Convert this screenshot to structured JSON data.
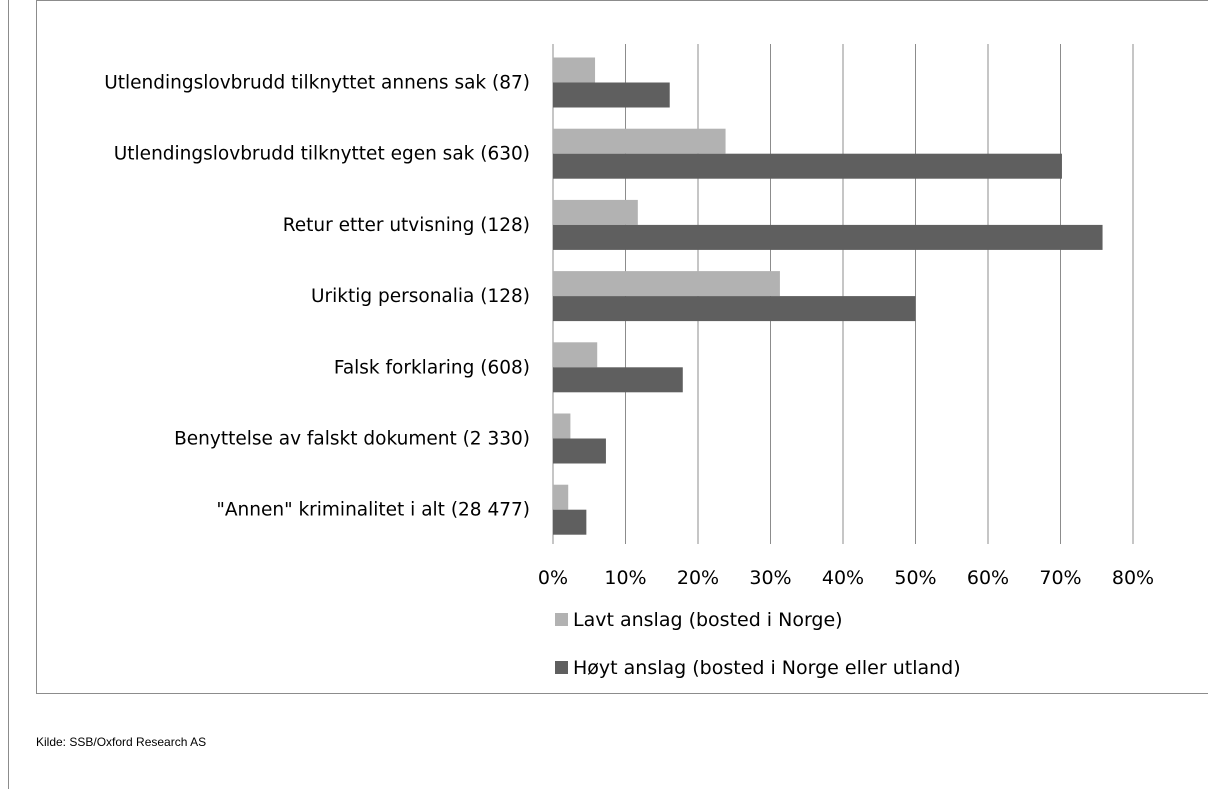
{
  "chart_data": {
    "type": "bar",
    "orientation": "horizontal",
    "categories": [
      "Utlendingslovbrudd tilknyttet annens sak (87)",
      "Utlendingslovbrudd tilknyttet egen sak (630)",
      "Retur etter utvisning (128)",
      "Uriktig personalia (128)",
      "Falsk forklaring (608)",
      "Benyttelse av falskt dokument (2 330)",
      "\"Annen\" kriminalitet i alt (28 477)"
    ],
    "series": [
      {
        "name": "Lavt anslag (bosted i Norge)",
        "color": "#b2b2b2",
        "values": [
          5.8,
          23.8,
          11.7,
          31.3,
          6.1,
          2.4,
          2.1
        ]
      },
      {
        "name": "Høyt anslag (bosted i Norge eller utland)",
        "color": "#5f5f5f",
        "values": [
          16.1,
          70.2,
          75.8,
          50.0,
          17.9,
          7.3,
          4.6
        ]
      }
    ],
    "xlim": [
      0,
      80
    ],
    "xticks": [
      "0%",
      "10%",
      "20%",
      "30%",
      "40%",
      "50%",
      "60%",
      "70%",
      "80%"
    ],
    "grid": true,
    "legend_position": "bottom"
  },
  "source": "Kilde: SSB/Oxford Research AS"
}
